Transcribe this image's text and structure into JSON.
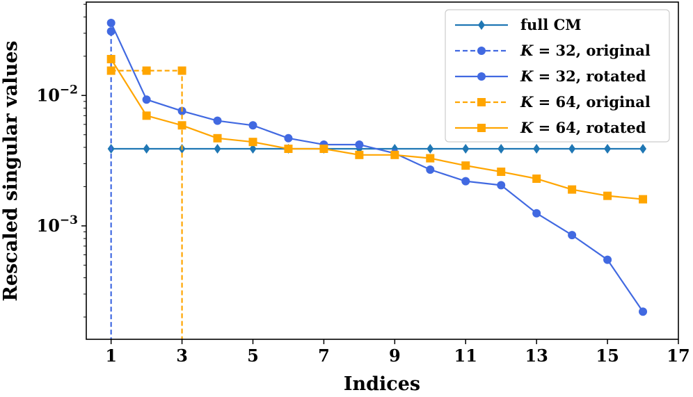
{
  "chart_data": {
    "type": "line",
    "xlabel": "Indices",
    "ylabel": "Rescaled singular values",
    "yscale": "log",
    "xlim": [
      0.3,
      17
    ],
    "ylim": [
      0.000135,
      0.052
    ],
    "xticks": [
      1,
      3,
      5,
      7,
      9,
      11,
      13,
      15,
      17
    ],
    "xtick_labels": [
      "1",
      "3",
      "5",
      "7",
      "9",
      "11",
      "13",
      "15",
      "17"
    ],
    "yticks": [
      0.01,
      0.001
    ],
    "ytick_labels": [
      {
        "base": "10",
        "exp": "−2"
      },
      {
        "base": "10",
        "exp": "−3"
      }
    ],
    "legend_position": "upper right",
    "colors": {
      "full": "#1f77b4",
      "k32": "#4169e1",
      "k64": "#ffa500"
    },
    "series": [
      {
        "name": "full CM",
        "legend": {
          "prefix": "",
          "k": "",
          "eq": "full CM"
        },
        "color": "#1f77b4",
        "marker": "diamond",
        "dashed": false,
        "x": [
          1,
          2,
          3,
          4,
          5,
          6,
          7,
          8,
          9,
          10,
          11,
          12,
          13,
          14,
          15,
          16
        ],
        "values": [
          0.0039,
          0.0039,
          0.0039,
          0.0039,
          0.0039,
          0.0039,
          0.0039,
          0.0039,
          0.0039,
          0.0039,
          0.0039,
          0.0039,
          0.0039,
          0.0039,
          0.0039,
          0.0039
        ]
      },
      {
        "name": "K = 32, original",
        "legend": {
          "k": "K",
          "eq": " = 32, original"
        },
        "color": "#4169e1",
        "marker": "circle",
        "dashed": true,
        "x": [
          1,
          1
        ],
        "values": [
          0.031,
          0.0001
        ]
      },
      {
        "name": "K = 32, rotated",
        "legend": {
          "k": "K",
          "eq": " = 32, rotated"
        },
        "color": "#4169e1",
        "marker": "circle",
        "dashed": false,
        "x": [
          1,
          2,
          3,
          4,
          5,
          6,
          7,
          8,
          9,
          10,
          11,
          12,
          13,
          14,
          15,
          16
        ],
        "values": [
          0.036,
          0.0093,
          0.0076,
          0.0064,
          0.0059,
          0.0047,
          0.0042,
          0.0042,
          0.0036,
          0.0027,
          0.0022,
          0.00205,
          0.00125,
          0.00085,
          0.00055,
          0.00022
        ]
      },
      {
        "name": "K = 64, original",
        "legend": {
          "k": "K",
          "eq": " = 64, original"
        },
        "color": "#ffa500",
        "marker": "square",
        "dashed": true,
        "x": [
          1,
          2,
          3,
          3
        ],
        "values": [
          0.0155,
          0.0155,
          0.0155,
          0.0001
        ]
      },
      {
        "name": "K = 64, rotated",
        "legend": {
          "k": "K",
          "eq": " = 64, rotated"
        },
        "color": "#ffa500",
        "marker": "square",
        "dashed": false,
        "x": [
          1,
          2,
          3,
          4,
          5,
          6,
          7,
          8,
          9,
          10,
          11,
          12,
          13,
          14,
          15,
          16
        ],
        "values": [
          0.019,
          0.007,
          0.0059,
          0.0047,
          0.0044,
          0.0039,
          0.0039,
          0.0035,
          0.0035,
          0.0033,
          0.0029,
          0.0026,
          0.0023,
          0.0019,
          0.0017,
          0.0016
        ]
      }
    ]
  }
}
